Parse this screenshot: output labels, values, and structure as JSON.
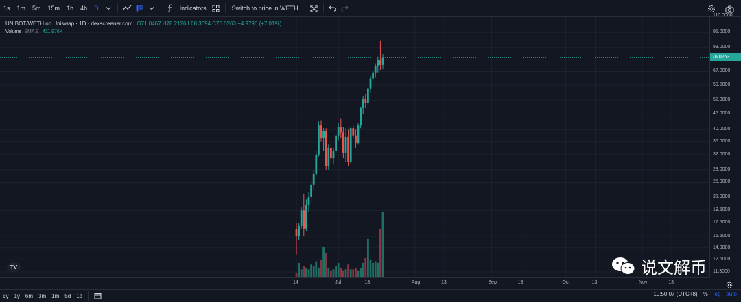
{
  "toolbar": {
    "intervals": [
      "1s",
      "1m",
      "5m",
      "15m",
      "1h",
      "4h",
      "D"
    ],
    "active_interval": "D",
    "indicators_label": "Indicators",
    "switch_label": "Switch to price in WETH"
  },
  "legend": {
    "symbol": "UNIBOT/WETH on Uniswap · 1D · dexscreener.com",
    "ohlc": "O71.0467 H78.2126 L68.3094 C76.0263 +4.9796 (+7.01%)",
    "volume_label": "Volume",
    "volume_ma": "SMA 9",
    "volume_value": "411.976K"
  },
  "price_axis": {
    "labels": [
      "110.0000",
      "95.0000",
      "83.0000",
      "67.0000",
      "59.5000",
      "52.0000",
      "46.0000",
      "40.0000",
      "36.0000",
      "32.0000",
      "28.0000",
      "25.0000",
      "22.0000",
      "19.5000",
      "17.5000",
      "15.5000",
      "14.0000",
      "12.6000",
      "11.3000"
    ],
    "current_price": "76.0263"
  },
  "time_axis": {
    "labels": [
      "14",
      "Jul",
      "13",
      "Aug",
      "13",
      "Sep",
      "13",
      "Oct",
      "13",
      "Nov",
      "13"
    ]
  },
  "bottom": {
    "ranges": [
      "5y",
      "1y",
      "6m",
      "3m",
      "1m",
      "5d",
      "1d"
    ],
    "time": "10:50:07 (UTC+8)",
    "percent": "%",
    "log": "log",
    "auto": "auto"
  },
  "watermark": {
    "text": "说文解币"
  },
  "colors": {
    "up": "#26a69a",
    "down": "#ef5350",
    "background": "#131722",
    "accent": "#2962ff"
  },
  "chart_data": {
    "type": "candlestick",
    "scale": "log",
    "ylim": [
      11.3,
      110
    ],
    "x_start": "2023-06-12",
    "x_end": "2023-11-16",
    "candles": [
      {
        "o": 16.5,
        "h": 17.5,
        "l": 13.2,
        "c": 15.6
      },
      {
        "o": 15.6,
        "h": 17.4,
        "l": 15.0,
        "c": 17.0
      },
      {
        "o": 17.0,
        "h": 20.0,
        "l": 16.6,
        "c": 19.5
      },
      {
        "o": 19.5,
        "h": 22.5,
        "l": 15.5,
        "c": 16.6
      },
      {
        "o": 16.6,
        "h": 21.5,
        "l": 16.2,
        "c": 20.5
      },
      {
        "o": 20.5,
        "h": 23.0,
        "l": 19.2,
        "c": 22.0
      },
      {
        "o": 22.0,
        "h": 25.5,
        "l": 21.0,
        "c": 24.5
      },
      {
        "o": 24.5,
        "h": 28.0,
        "l": 23.5,
        "c": 27.0
      },
      {
        "o": 27.0,
        "h": 33.0,
        "l": 26.5,
        "c": 32.0
      },
      {
        "o": 32.0,
        "h": 43.0,
        "l": 31.5,
        "c": 41.5
      },
      {
        "o": 41.5,
        "h": 43.5,
        "l": 36.0,
        "c": 37.0
      },
      {
        "o": 37.0,
        "h": 40.5,
        "l": 33.0,
        "c": 39.5
      },
      {
        "o": 39.5,
        "h": 40.5,
        "l": 28.0,
        "c": 29.0
      },
      {
        "o": 29.0,
        "h": 35.0,
        "l": 28.0,
        "c": 34.0
      },
      {
        "o": 34.0,
        "h": 35.0,
        "l": 30.0,
        "c": 31.0
      },
      {
        "o": 31.0,
        "h": 34.0,
        "l": 29.5,
        "c": 33.0
      },
      {
        "o": 33.0,
        "h": 38.5,
        "l": 32.5,
        "c": 38.0
      },
      {
        "o": 38.0,
        "h": 42.5,
        "l": 36.5,
        "c": 41.0
      },
      {
        "o": 41.0,
        "h": 44.0,
        "l": 37.0,
        "c": 39.0
      },
      {
        "o": 39.0,
        "h": 41.0,
        "l": 31.0,
        "c": 32.5
      },
      {
        "o": 32.5,
        "h": 40.5,
        "l": 30.0,
        "c": 37.5
      },
      {
        "o": 37.5,
        "h": 40.0,
        "l": 29.0,
        "c": 30.0
      },
      {
        "o": 30.0,
        "h": 41.0,
        "l": 29.5,
        "c": 40.5
      },
      {
        "o": 40.5,
        "h": 41.5,
        "l": 37.0,
        "c": 38.0
      },
      {
        "o": 38.0,
        "h": 40.0,
        "l": 34.0,
        "c": 35.5
      },
      {
        "o": 35.5,
        "h": 42.5,
        "l": 35.0,
        "c": 41.5
      },
      {
        "o": 41.5,
        "h": 49.0,
        "l": 40.5,
        "c": 48.5
      },
      {
        "o": 48.5,
        "h": 54.0,
        "l": 46.0,
        "c": 52.5
      },
      {
        "o": 52.5,
        "h": 55.0,
        "l": 48.5,
        "c": 50.5
      },
      {
        "o": 50.5,
        "h": 58.0,
        "l": 49.5,
        "c": 57.5
      },
      {
        "o": 57.5,
        "h": 64.5,
        "l": 55.5,
        "c": 63.0
      },
      {
        "o": 63.0,
        "h": 68.0,
        "l": 60.0,
        "c": 66.5
      },
      {
        "o": 66.5,
        "h": 72.0,
        "l": 63.5,
        "c": 70.5
      },
      {
        "o": 70.5,
        "h": 76.5,
        "l": 66.5,
        "c": 74.0
      },
      {
        "o": 74.0,
        "h": 88.0,
        "l": 68.0,
        "c": 71.0
      },
      {
        "o": 71.0467,
        "h": 78.2126,
        "l": 68.3094,
        "c": 76.0263
      }
    ],
    "volume": [
      3,
      9,
      5,
      7,
      6,
      5,
      8,
      7,
      10,
      6,
      11,
      19,
      15,
      6,
      4,
      5,
      7,
      9,
      6,
      4,
      5,
      8,
      5,
      5,
      6,
      4,
      6,
      9,
      12,
      24,
      11,
      9,
      10,
      9,
      30,
      41
    ]
  }
}
